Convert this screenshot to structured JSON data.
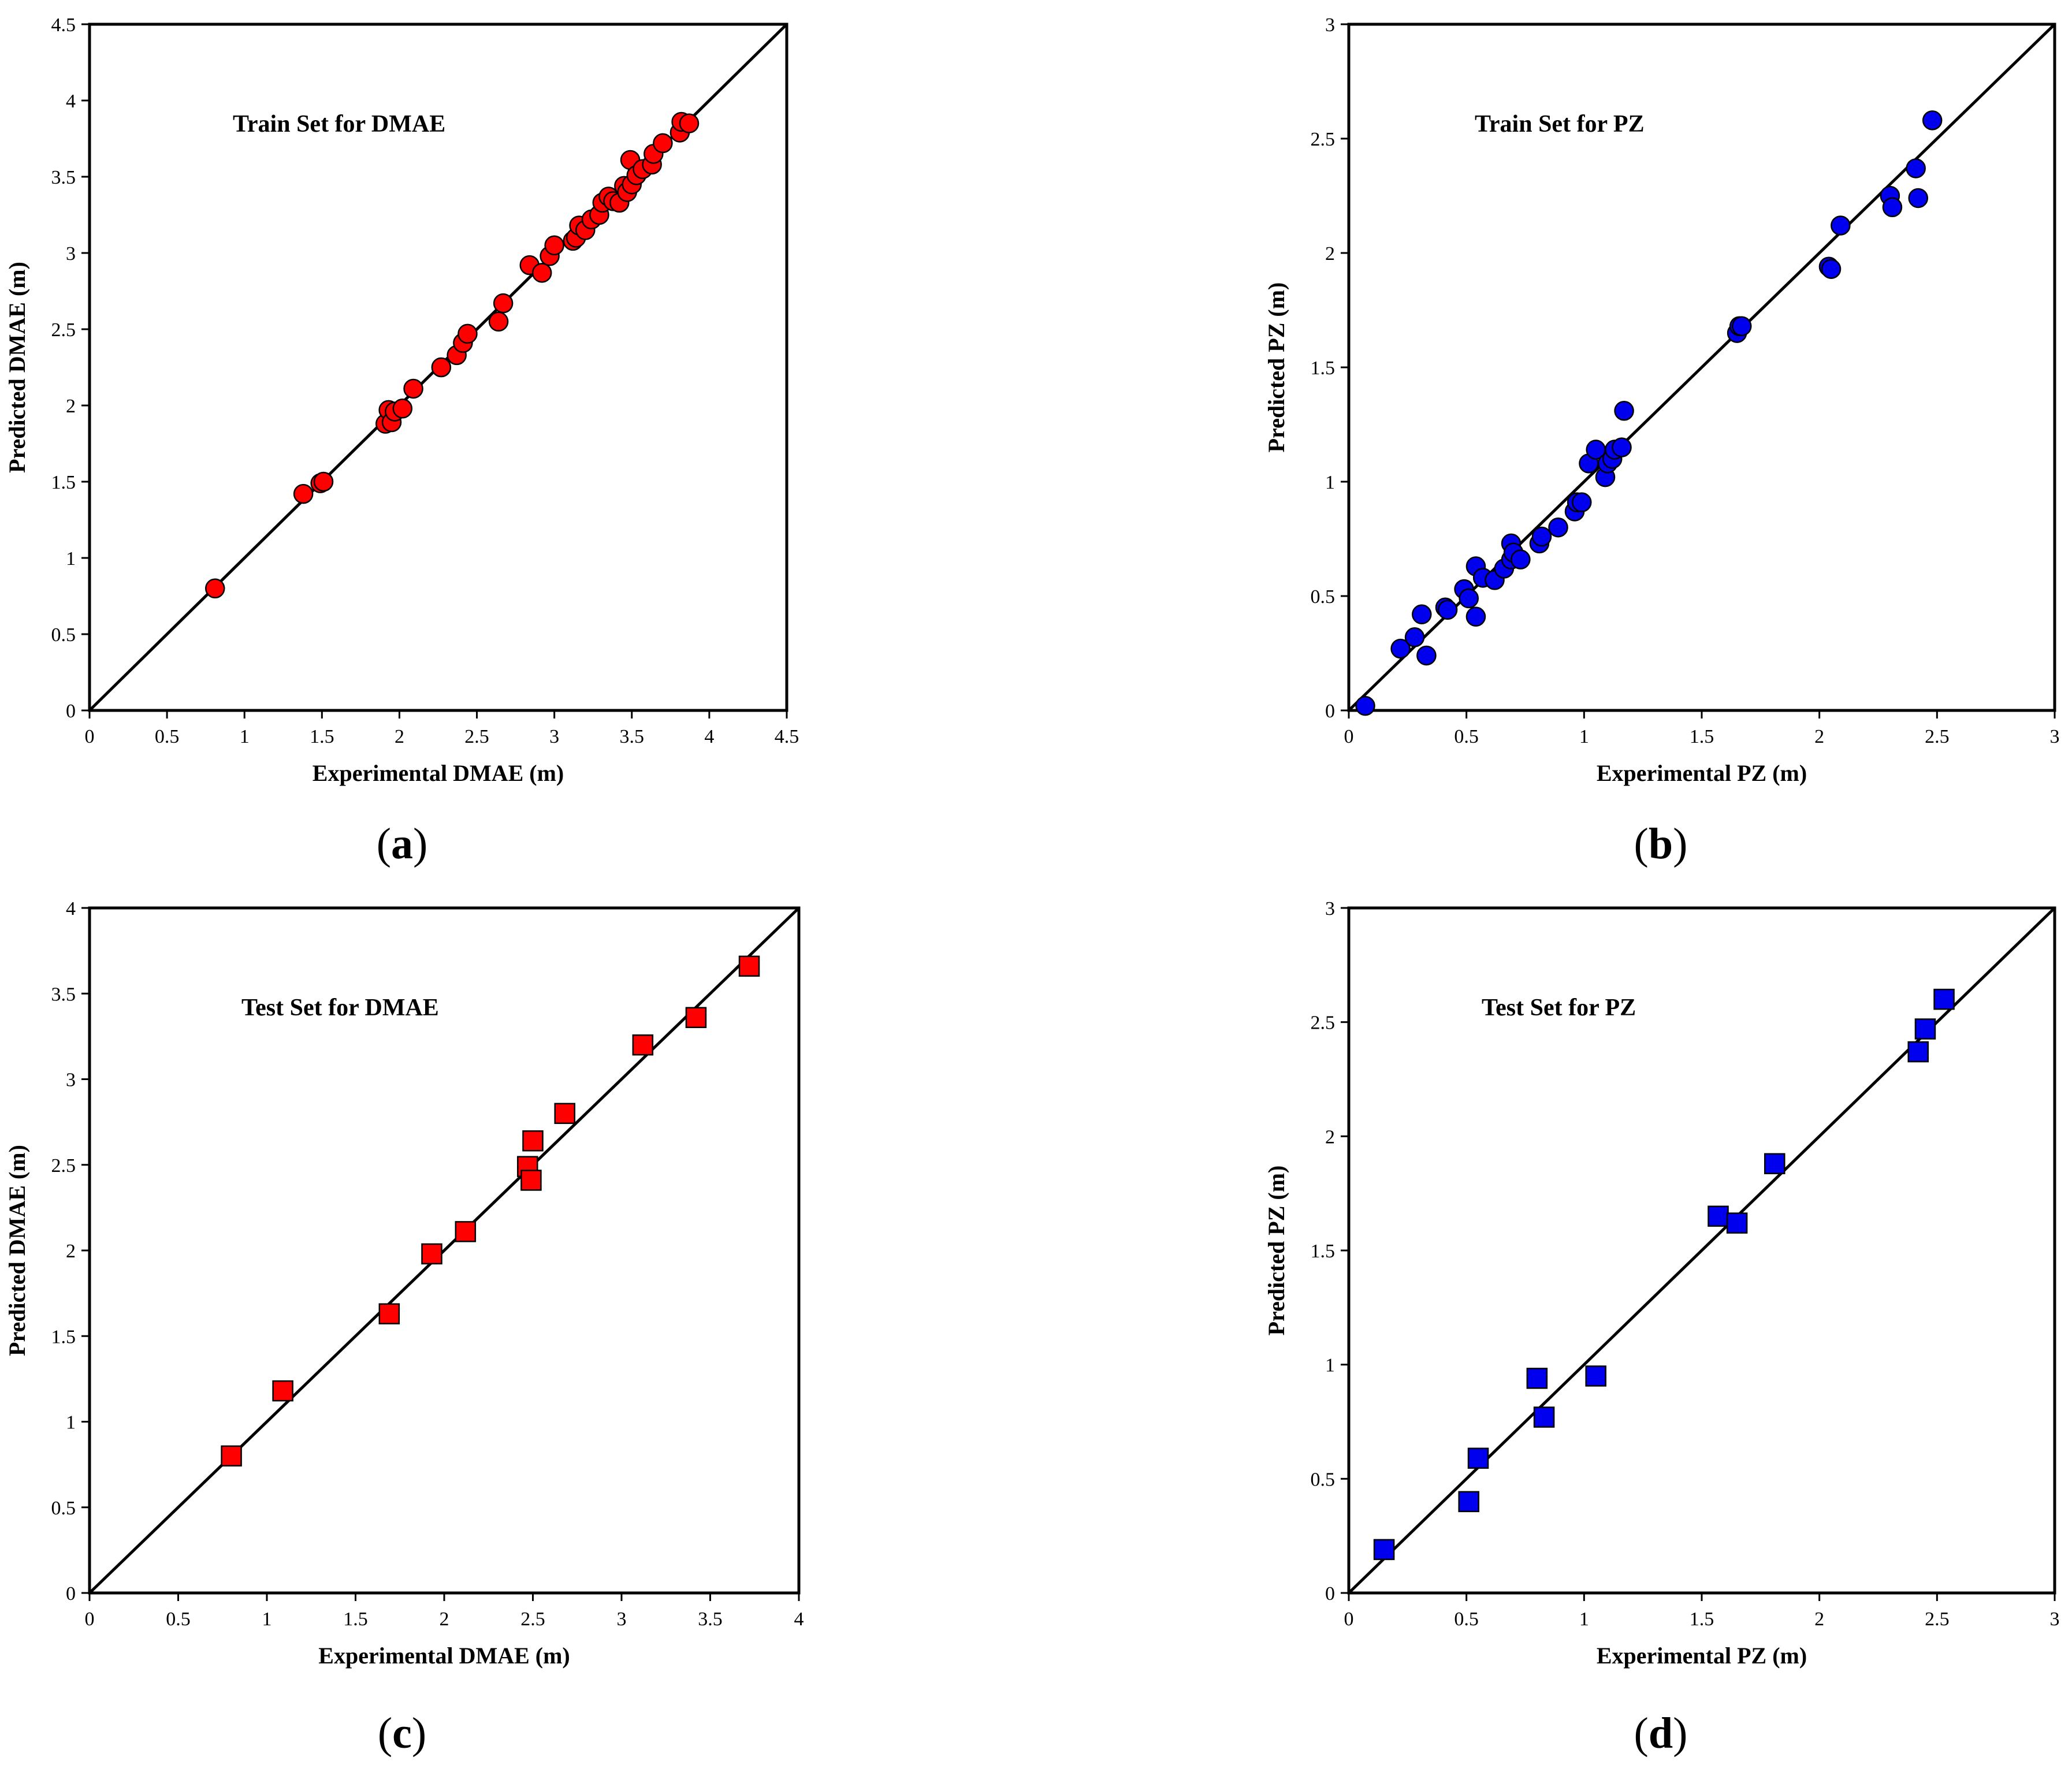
{
  "figure": {
    "panels": [
      {
        "id": "a",
        "label_letter": "a",
        "paren_open": "(",
        "paren_close": ")"
      },
      {
        "id": "b",
        "label_letter": "b",
        "paren_open": "(",
        "paren_close": ")"
      },
      {
        "id": "c",
        "label_letter": "c",
        "paren_open": "(",
        "paren_close": ")"
      },
      {
        "id": "d",
        "label_letter": "d",
        "paren_open": "(",
        "paren_close": ")"
      }
    ]
  },
  "chart_data": [
    {
      "id": "a",
      "type": "scatter",
      "title": "Train Set for DMAE",
      "xlabel": "Experimental DMAE (m)",
      "ylabel": "Predicted DMAE (m)",
      "xlim": [
        0,
        4.5
      ],
      "ylim": [
        0,
        4.5
      ],
      "xticks": [
        "0",
        "0.5",
        "1",
        "1.5",
        "2",
        "2.5",
        "3",
        "3.5",
        "4",
        "4.5"
      ],
      "yticks": [
        "0",
        "0.5",
        "1",
        "1.5",
        "2",
        "2.5",
        "3",
        "3.5",
        "4",
        "4.5"
      ],
      "marker": "circle",
      "color": "#ff0000",
      "reference_line": "y = x",
      "points": [
        [
          0.81,
          0.8
        ],
        [
          1.38,
          1.42
        ],
        [
          1.49,
          1.49
        ],
        [
          1.51,
          1.5
        ],
        [
          1.91,
          1.88
        ],
        [
          1.93,
          1.97
        ],
        [
          1.95,
          1.89
        ],
        [
          1.97,
          1.96
        ],
        [
          2.02,
          1.98
        ],
        [
          2.09,
          2.11
        ],
        [
          2.27,
          2.25
        ],
        [
          2.37,
          2.33
        ],
        [
          2.41,
          2.41
        ],
        [
          2.44,
          2.47
        ],
        [
          2.64,
          2.55
        ],
        [
          2.67,
          2.67
        ],
        [
          2.84,
          2.92
        ],
        [
          2.92,
          2.87
        ],
        [
          2.97,
          2.98
        ],
        [
          3.0,
          3.05
        ],
        [
          3.12,
          3.08
        ],
        [
          3.14,
          3.1
        ],
        [
          3.16,
          3.18
        ],
        [
          3.2,
          3.15
        ],
        [
          3.24,
          3.22
        ],
        [
          3.29,
          3.25
        ],
        [
          3.31,
          3.33
        ],
        [
          3.35,
          3.37
        ],
        [
          3.38,
          3.34
        ],
        [
          3.42,
          3.33
        ],
        [
          3.45,
          3.44
        ],
        [
          3.47,
          3.4
        ],
        [
          3.49,
          3.61
        ],
        [
          3.5,
          3.45
        ],
        [
          3.53,
          3.51
        ],
        [
          3.57,
          3.55
        ],
        [
          3.63,
          3.58
        ],
        [
          3.64,
          3.65
        ],
        [
          3.7,
          3.72
        ],
        [
          3.81,
          3.79
        ],
        [
          3.82,
          3.86
        ],
        [
          3.87,
          3.85
        ]
      ]
    },
    {
      "id": "b",
      "type": "scatter",
      "title": "Train Set for PZ",
      "xlabel": "Experimental PZ (m)",
      "ylabel": "Predicted PZ (m)",
      "xlim": [
        0,
        3
      ],
      "ylim": [
        0,
        3
      ],
      "xticks": [
        "0",
        "0.5",
        "1",
        "1.5",
        "2",
        "2.5",
        "3"
      ],
      "yticks": [
        "0",
        "0.5",
        "1",
        "1.5",
        "2",
        "2.5",
        "3"
      ],
      "marker": "circle",
      "color": "#0000ee",
      "reference_line": "y = x",
      "points": [
        [
          0.07,
          0.02
        ],
        [
          0.22,
          0.27
        ],
        [
          0.28,
          0.32
        ],
        [
          0.31,
          0.42
        ],
        [
          0.33,
          0.24
        ],
        [
          0.41,
          0.45
        ],
        [
          0.42,
          0.44
        ],
        [
          0.49,
          0.53
        ],
        [
          0.51,
          0.49
        ],
        [
          0.54,
          0.41
        ],
        [
          0.54,
          0.63
        ],
        [
          0.57,
          0.58
        ],
        [
          0.62,
          0.57
        ],
        [
          0.66,
          0.62
        ],
        [
          0.69,
          0.66
        ],
        [
          0.69,
          0.73
        ],
        [
          0.7,
          0.69
        ],
        [
          0.73,
          0.66
        ],
        [
          0.81,
          0.73
        ],
        [
          0.82,
          0.76
        ],
        [
          0.89,
          0.8
        ],
        [
          0.96,
          0.87
        ],
        [
          0.97,
          0.91
        ],
        [
          0.99,
          0.91
        ],
        [
          1.02,
          1.08
        ],
        [
          1.05,
          1.14
        ],
        [
          1.09,
          1.02
        ],
        [
          1.1,
          1.08
        ],
        [
          1.12,
          1.1
        ],
        [
          1.13,
          1.14
        ],
        [
          1.16,
          1.15
        ],
        [
          1.17,
          1.31
        ],
        [
          1.65,
          1.65
        ],
        [
          1.66,
          1.68
        ],
        [
          1.67,
          1.68
        ],
        [
          2.04,
          1.94
        ],
        [
          2.05,
          1.93
        ],
        [
          2.09,
          2.12
        ],
        [
          2.3,
          2.25
        ],
        [
          2.31,
          2.2
        ],
        [
          2.41,
          2.37
        ],
        [
          2.42,
          2.24
        ],
        [
          2.48,
          2.58
        ]
      ]
    },
    {
      "id": "c",
      "type": "scatter",
      "title": "Test Set for DMAE",
      "xlabel": "Experimental DMAE (m)",
      "ylabel": "Predicted DMAE (m)",
      "xlim": [
        0,
        4
      ],
      "ylim": [
        0,
        4
      ],
      "xticks": [
        "0",
        "0.5",
        "1",
        "1.5",
        "2",
        "2.5",
        "3",
        "3.5",
        "4"
      ],
      "yticks": [
        "0",
        "0.5",
        "1",
        "1.5",
        "2",
        "2.5",
        "3",
        "3.5",
        "4"
      ],
      "marker": "square",
      "color": "#ff0000",
      "reference_line": "y = x",
      "points": [
        [
          0.8,
          0.8
        ],
        [
          1.09,
          1.18
        ],
        [
          1.69,
          1.63
        ],
        [
          1.93,
          1.98
        ],
        [
          2.12,
          2.11
        ],
        [
          2.47,
          2.49
        ],
        [
          2.49,
          2.41
        ],
        [
          2.5,
          2.64
        ],
        [
          2.68,
          2.8
        ],
        [
          3.12,
          3.2
        ],
        [
          3.42,
          3.36
        ],
        [
          3.72,
          3.66
        ]
      ]
    },
    {
      "id": "d",
      "type": "scatter",
      "title": "Test Set for PZ",
      "xlabel": "Experimental PZ (m)",
      "ylabel": "Predicted PZ (m)",
      "xlim": [
        0,
        3
      ],
      "ylim": [
        0,
        3
      ],
      "xticks": [
        "0",
        "0.5",
        "1",
        "1.5",
        "2",
        "2.5",
        "3"
      ],
      "yticks": [
        "0",
        "0.5",
        "1",
        "1.5",
        "2",
        "2.5",
        "3"
      ],
      "marker": "square",
      "color": "#0000ee",
      "reference_line": "y = x",
      "points": [
        [
          0.15,
          0.19
        ],
        [
          0.51,
          0.4
        ],
        [
          0.55,
          0.59
        ],
        [
          0.8,
          0.94
        ],
        [
          0.83,
          0.77
        ],
        [
          1.05,
          0.95
        ],
        [
          1.57,
          1.65
        ],
        [
          1.65,
          1.62
        ],
        [
          1.81,
          1.88
        ],
        [
          2.42,
          2.37
        ],
        [
          2.45,
          2.47
        ],
        [
          2.53,
          2.6
        ]
      ]
    }
  ]
}
